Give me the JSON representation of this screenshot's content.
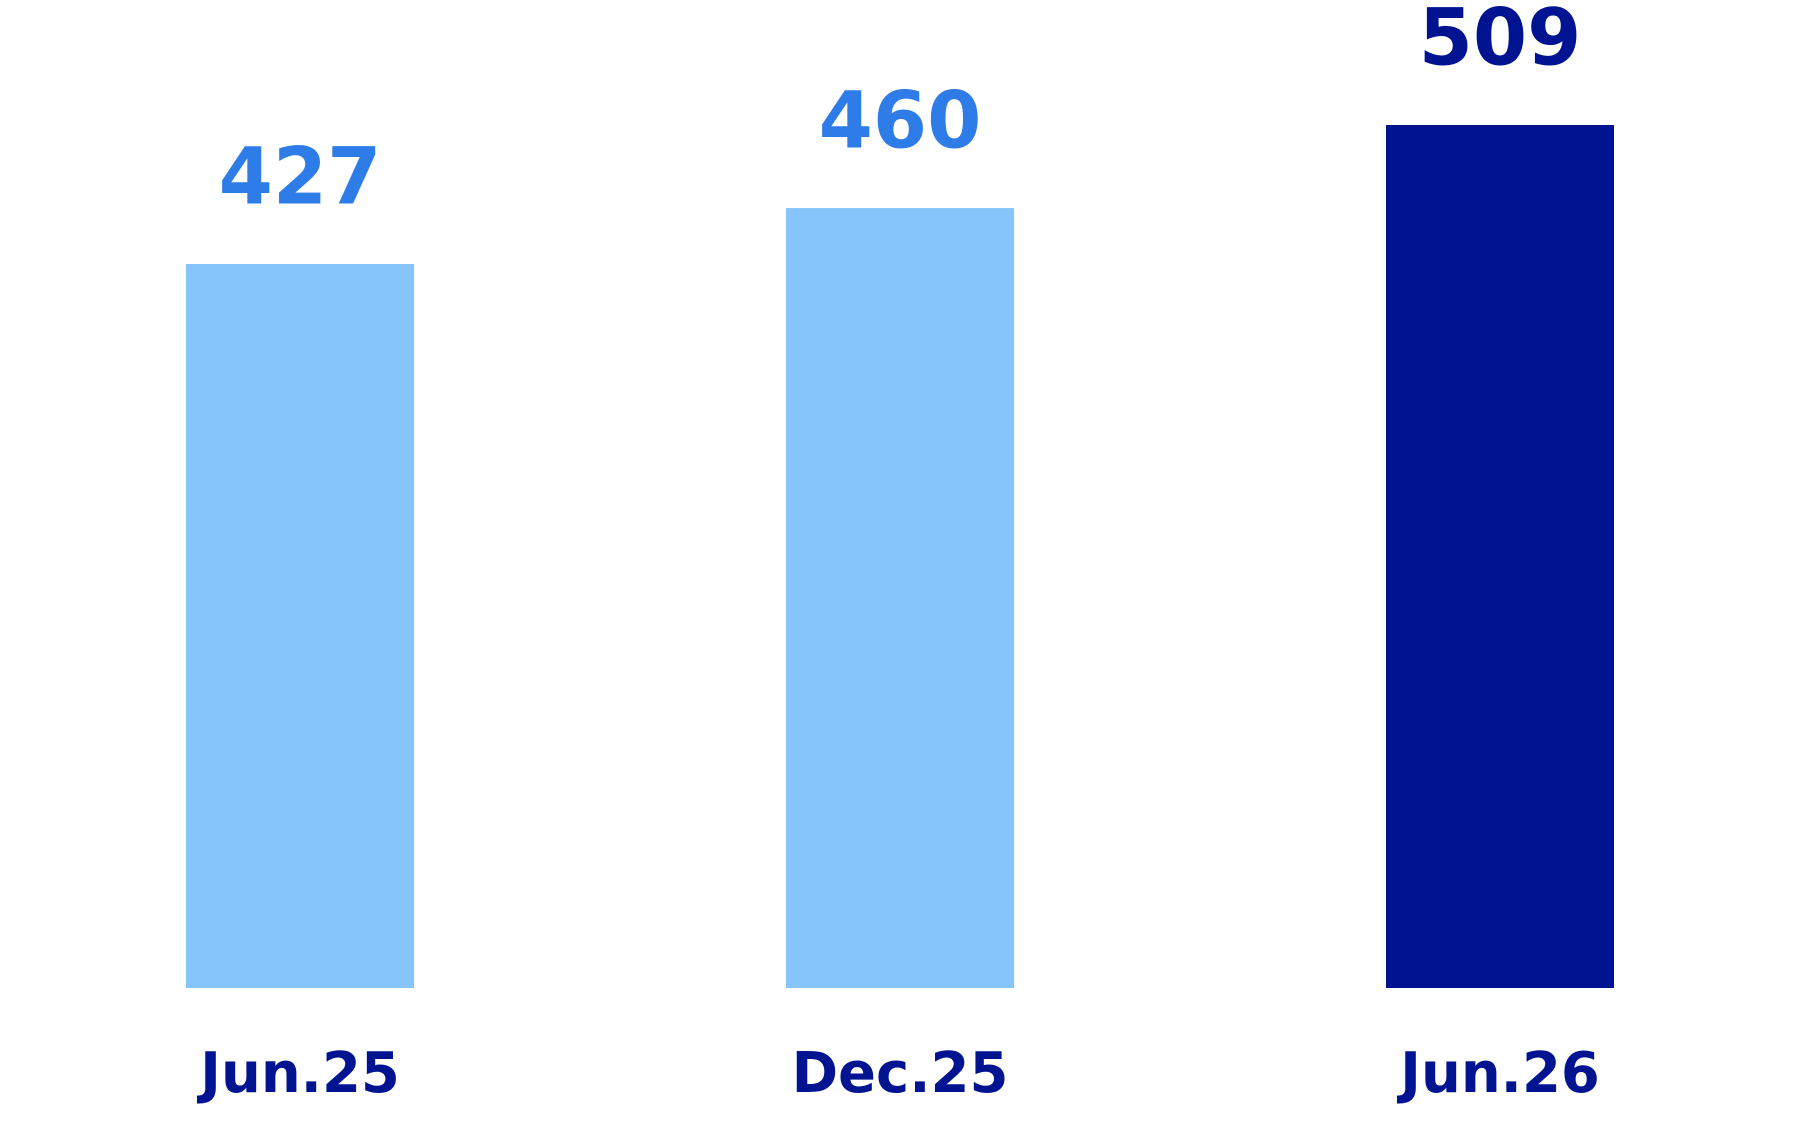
{
  "chart_data": {
    "type": "bar",
    "categories": [
      "Jun.25",
      "Dec.25",
      "Jun.26"
    ],
    "values": [
      427,
      460,
      509
    ],
    "colors": [
      "#85c5fc",
      "#85c5fc",
      "#001391"
    ],
    "value_label_colors": [
      "#2d7ce8",
      "#2d7ce8",
      "#001391"
    ],
    "category_label_color": "#001391"
  }
}
